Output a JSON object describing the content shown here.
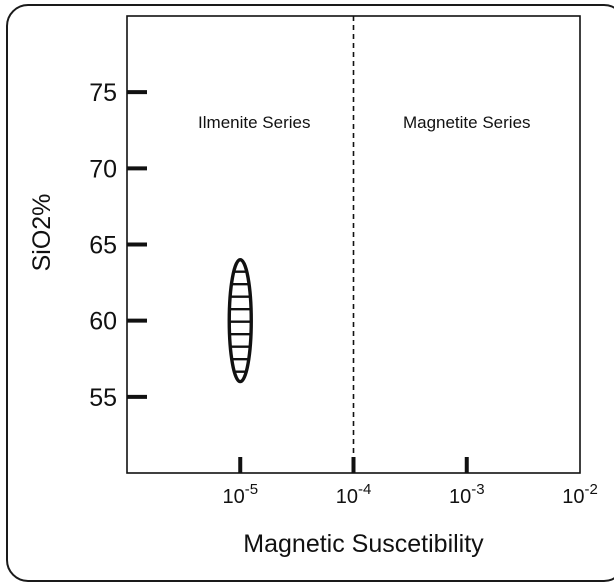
{
  "chart_data": {
    "type": "scatter",
    "title": "",
    "xlabel": "Magnetic Suscetibility",
    "ylabel": "SiO2%",
    "x_scale": "log",
    "xlim": [
      1e-06,
      0.01
    ],
    "ylim": [
      50,
      80
    ],
    "x_ticks": [
      {
        "value": 1e-05,
        "base": "10",
        "exp": "-5"
      },
      {
        "value": 0.0001,
        "base": "10",
        "exp": "-4"
      },
      {
        "value": 0.001,
        "base": "10",
        "exp": "-3"
      },
      {
        "value": 0.01,
        "base": "10",
        "exp": "-2"
      }
    ],
    "y_ticks": [
      {
        "value": 55,
        "label": "55"
      },
      {
        "value": 60,
        "label": "60"
      },
      {
        "value": 65,
        "label": "65"
      },
      {
        "value": 70,
        "label": "70"
      },
      {
        "value": 75,
        "label": "75"
      }
    ],
    "boundary": {
      "x": 0.0001,
      "style": "dashed"
    },
    "regions": [
      {
        "label": "Ilmenite Series"
      },
      {
        "label": "Magnetite Series"
      }
    ],
    "field": {
      "x_center": 1e-05,
      "y_min": 56,
      "y_max": 64,
      "fill": "horizontal-hatch"
    },
    "grid": false,
    "legend": "none"
  }
}
